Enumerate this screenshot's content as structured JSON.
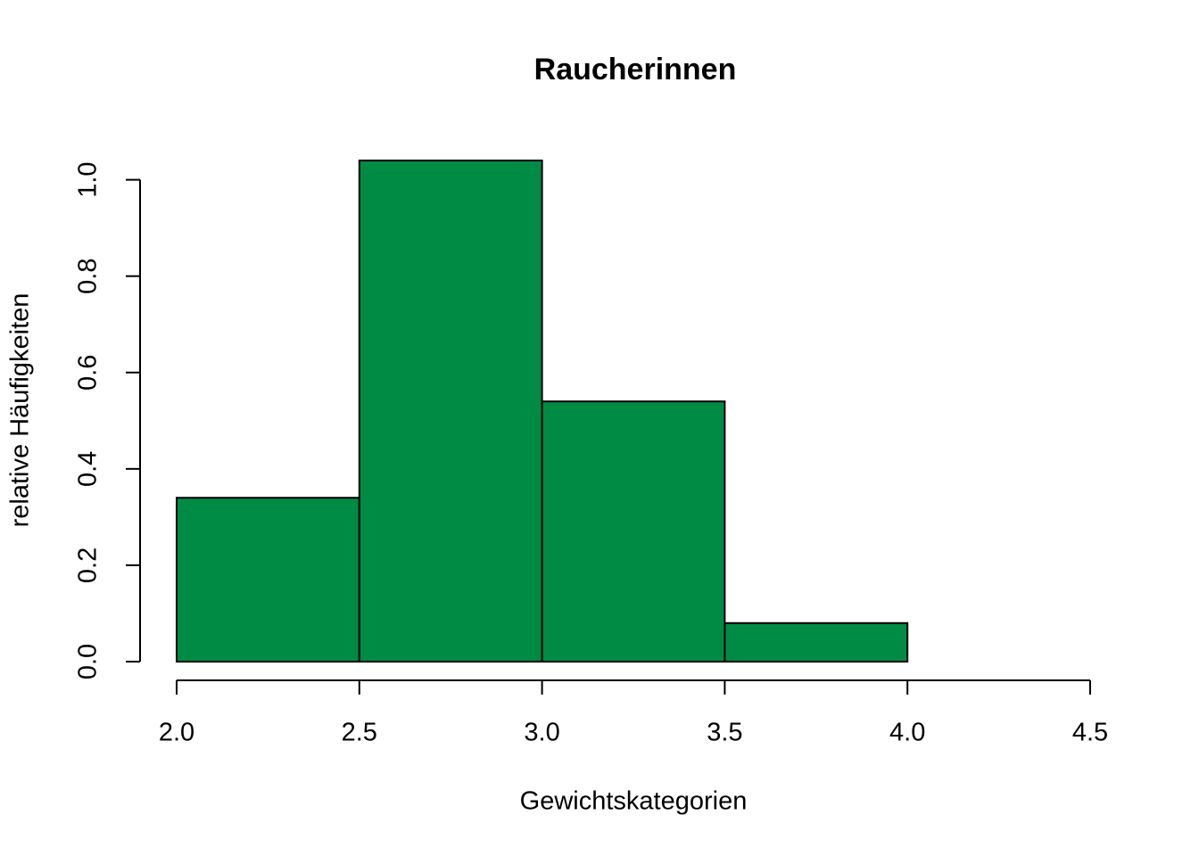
{
  "chart_data": {
    "type": "histogram",
    "title": "Raucherinnen",
    "x_label": "Gewichtskategorien",
    "y_label": "relative Häufigkeiten",
    "bins": [
      2.0,
      2.5,
      3.0,
      3.5,
      4.0,
      4.5
    ],
    "values": [
      0.34,
      1.04,
      0.54,
      0.08,
      0.0
    ],
    "color": "#008b45",
    "xlim": [
      2.0,
      4.5
    ],
    "ylim": [
      0,
      1.04
    ],
    "xticks": [
      {
        "value": 2,
        "label": "2.0"
      },
      {
        "value": 2.5,
        "label": "2.5"
      },
      {
        "value": 3,
        "label": "3.0"
      },
      {
        "value": 3.5,
        "label": "3.5"
      },
      {
        "value": 4,
        "label": "4.0"
      },
      {
        "value": 4.5,
        "label": "4.5"
      }
    ],
    "yticks": [
      {
        "value": 0,
        "label": "0.0"
      },
      0.2,
      0.4,
      0.6,
      0.8,
      {
        "value": 1,
        "label": "1.0"
      }
    ]
  }
}
